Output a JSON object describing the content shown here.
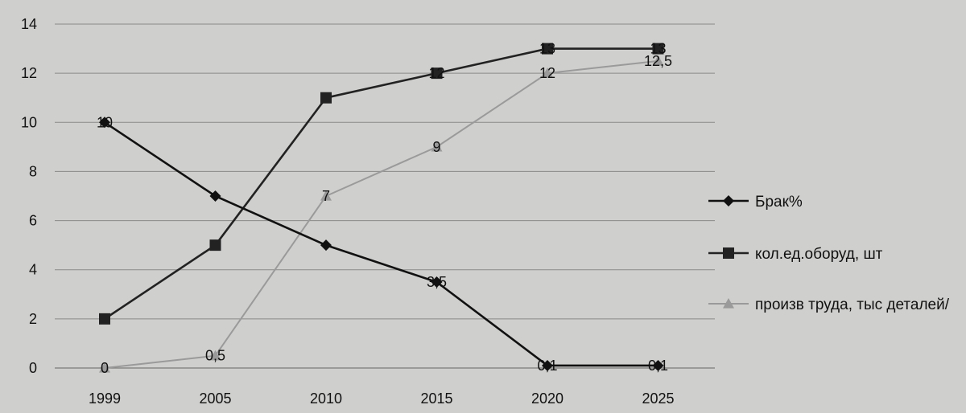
{
  "chart_data": {
    "type": "line",
    "categories": [
      "1999",
      "2005",
      "2010",
      "2015",
      "2020",
      "2025"
    ],
    "ylim": [
      0,
      14
    ],
    "yticks": [
      0,
      2,
      4,
      6,
      8,
      10,
      12,
      14
    ],
    "grid": true,
    "legend_position": "right",
    "series": [
      {
        "name": "Брак%",
        "values": [
          10,
          7,
          5,
          3.5,
          0.1,
          0.1
        ],
        "labels": [
          "10",
          "",
          "",
          "3,5",
          "0,1",
          "0,1"
        ],
        "marker": "diamond",
        "color": "#111111"
      },
      {
        "name": "кол.ед.оборуд, шт",
        "values": [
          2,
          5,
          11,
          12,
          13,
          13
        ],
        "labels": [
          "",
          "",
          "",
          "12",
          "13",
          "13"
        ],
        "marker": "square",
        "color": "#222222"
      },
      {
        "name": "произв труда, тыс деталей/",
        "values": [
          0,
          0.5,
          7,
          9,
          12,
          12.5
        ],
        "labels": [
          "0",
          "0,5",
          "7",
          "9",
          "12",
          "12,5"
        ],
        "marker": "triangle",
        "color": "#9a9a9a"
      }
    ]
  }
}
